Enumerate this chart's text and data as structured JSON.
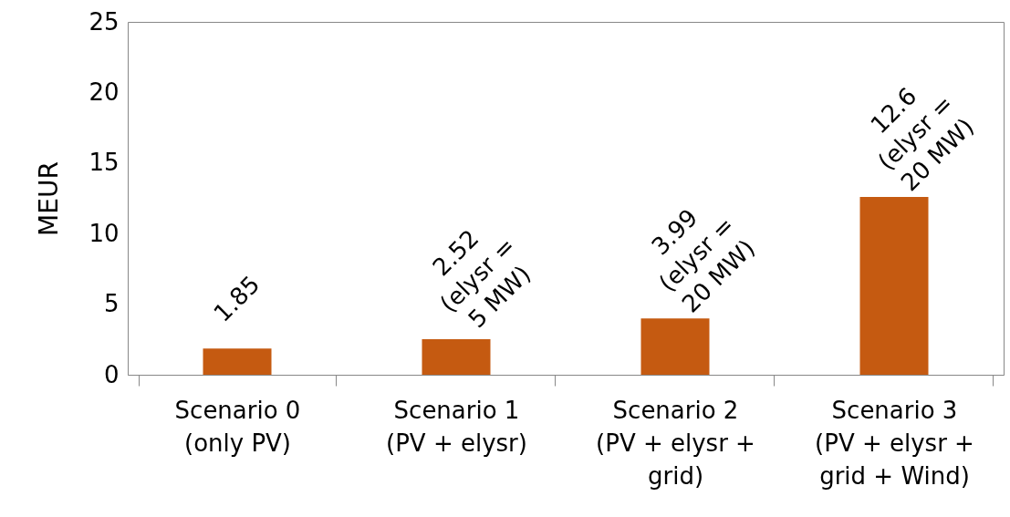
{
  "chart_data": {
    "type": "bar",
    "ylabel": "MEUR",
    "categories": [
      "Scenario 0\n(only PV)",
      "Scenario 1\n(PV + elysr)",
      "Scenario 2\n(PV + elysr +\ngrid)",
      "Scenario 3\n(PV + elysr +\ngrid + Wind)"
    ],
    "values": [
      1.85,
      2.52,
      3.99,
      12.6
    ],
    "value_labels": [
      "1.85",
      "2.52\n(elysr =\n5 MW)",
      "3.99\n(elysr =\n20 MW)",
      "12.6\n(elysr =\n20 MW)"
    ],
    "color": "#c55a11",
    "ylim": [
      0,
      25
    ],
    "yticks": [
      0,
      5,
      10,
      15,
      20,
      25
    ],
    "grid": false
  }
}
